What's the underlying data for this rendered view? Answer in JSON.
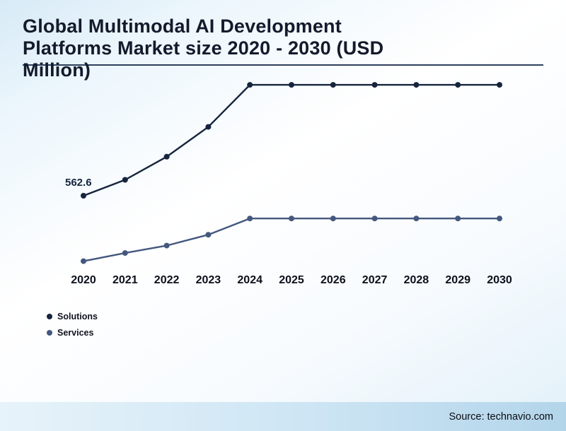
{
  "title": {
    "lines": [
      "Global Multimodal AI Development",
      "Platforms Market size 2020 - 2030 (USD",
      "Million)"
    ]
  },
  "source": {
    "text": "Source: technavio.com"
  },
  "chart_data": {
    "type": "line",
    "title": "Global Multimodal AI Development Platforms Market size 2020 - 2030 (USD Million)",
    "categories": [
      "2020",
      "2021",
      "2022",
      "2023",
      "2024",
      "2025",
      "2026",
      "2027",
      "2028",
      "2029",
      "2030"
    ],
    "series": [
      {
        "name": "Solutions",
        "color": "#16243d",
        "values": [
          562.6,
          680,
          850,
          1070,
          1380,
          1380,
          1380,
          1380,
          1380,
          1380,
          1380
        ]
      },
      {
        "name": "Services",
        "color": "#44587e",
        "values": [
          80,
          140,
          195,
          275,
          395,
          395,
          395,
          395,
          395,
          395,
          395
        ]
      }
    ],
    "xlabel": "",
    "ylabel": "USD Million",
    "ylim": [
      0,
      1500
    ],
    "grid": false,
    "legend_position": "bottom-left",
    "annotations": [
      {
        "text": "562.6",
        "series": "Solutions",
        "x": "2020"
      }
    ]
  }
}
